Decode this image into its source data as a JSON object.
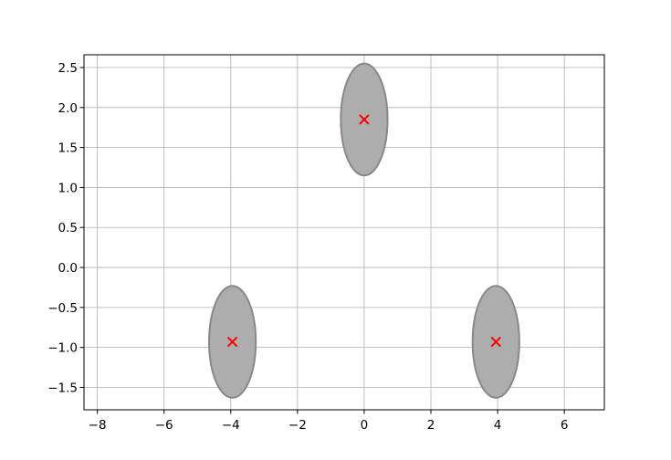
{
  "chart_data": {
    "type": "scatter",
    "title": "",
    "xlabel": "",
    "ylabel": "",
    "xlim": [
      -8.4,
      7.2
    ],
    "ylim": [
      -1.78,
      2.66
    ],
    "xticks": [
      -8,
      -6,
      -4,
      -2,
      0,
      2,
      4,
      6
    ],
    "yticks": [
      -1.5,
      -1.0,
      -0.5,
      0.0,
      0.5,
      1.0,
      1.5,
      2.0,
      2.5
    ],
    "xtick_labels": [
      "−8",
      "−6",
      "−4",
      "−2",
      "0",
      "2",
      "4",
      "6"
    ],
    "ytick_labels": [
      "−1.5",
      "−1.0",
      "−0.5",
      "0.0",
      "0.5",
      "1.0",
      "1.5",
      "2.0",
      "2.5"
    ],
    "grid": true,
    "centers": [
      {
        "x": 0.0,
        "y": 1.85
      },
      {
        "x": -3.95,
        "y": -0.93
      },
      {
        "x": 3.95,
        "y": -0.93
      }
    ],
    "ellipses": [
      {
        "cx": 0.0,
        "cy": 1.85,
        "width": 1.4,
        "height": 1.4
      },
      {
        "cx": -3.95,
        "cy": -0.93,
        "width": 1.4,
        "height": 1.4
      },
      {
        "cx": 3.95,
        "cy": -0.93,
        "width": 1.4,
        "height": 1.4
      }
    ],
    "colors": {
      "ellipse_fill": "#adadad",
      "ellipse_edge": "#888888",
      "marker": "#ff0000",
      "grid": "#b0b0b0",
      "axes": "#000000"
    }
  }
}
